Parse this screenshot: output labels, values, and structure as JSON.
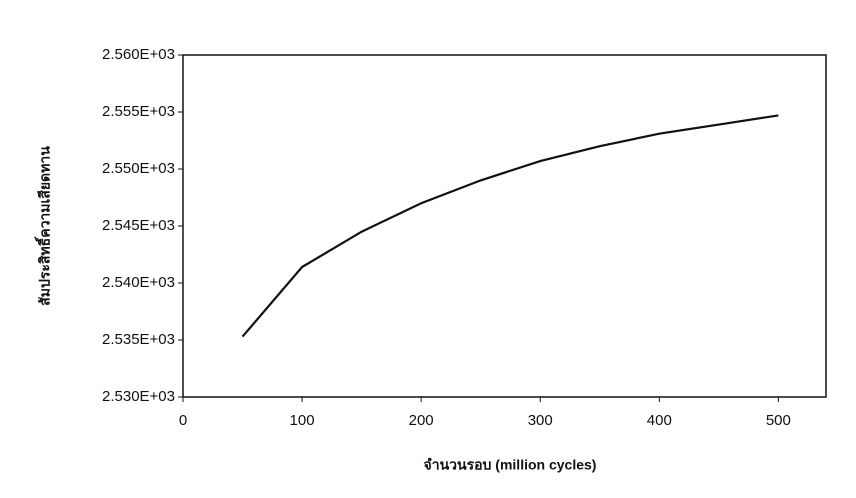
{
  "chart_data": {
    "type": "line",
    "x_label": "จำนวนรอบ (million cycles)",
    "y_label": "สัมประสิทธิ์ความเสียดทาน",
    "x": [
      50,
      100,
      150,
      200,
      250,
      300,
      350,
      400,
      450,
      500
    ],
    "series": [
      {
        "name": null,
        "color": "#111111",
        "values": [
          2535.3,
          2541.4,
          2544.5,
          2547.0,
          2549.0,
          2550.7,
          2552.0,
          2553.1,
          2553.9,
          2554.7
        ]
      }
    ],
    "xlim": [
      0,
      540
    ],
    "xticks": [
      0,
      100,
      200,
      300,
      400,
      500
    ],
    "ylim": [
      2530,
      2560
    ],
    "yticks": [
      {
        "value": 2530,
        "label": "2.530E+03"
      },
      {
        "value": 2535,
        "label": "2.535E+03"
      },
      {
        "value": 2540,
        "label": "2.540E+03"
      },
      {
        "value": 2545,
        "label": "2.545E+03"
      },
      {
        "value": 2550,
        "label": "2.550E+03"
      },
      {
        "value": 2555,
        "label": "2.555E+03"
      },
      {
        "value": 2560,
        "label": "2.560E+03"
      }
    ],
    "grid": false
  }
}
